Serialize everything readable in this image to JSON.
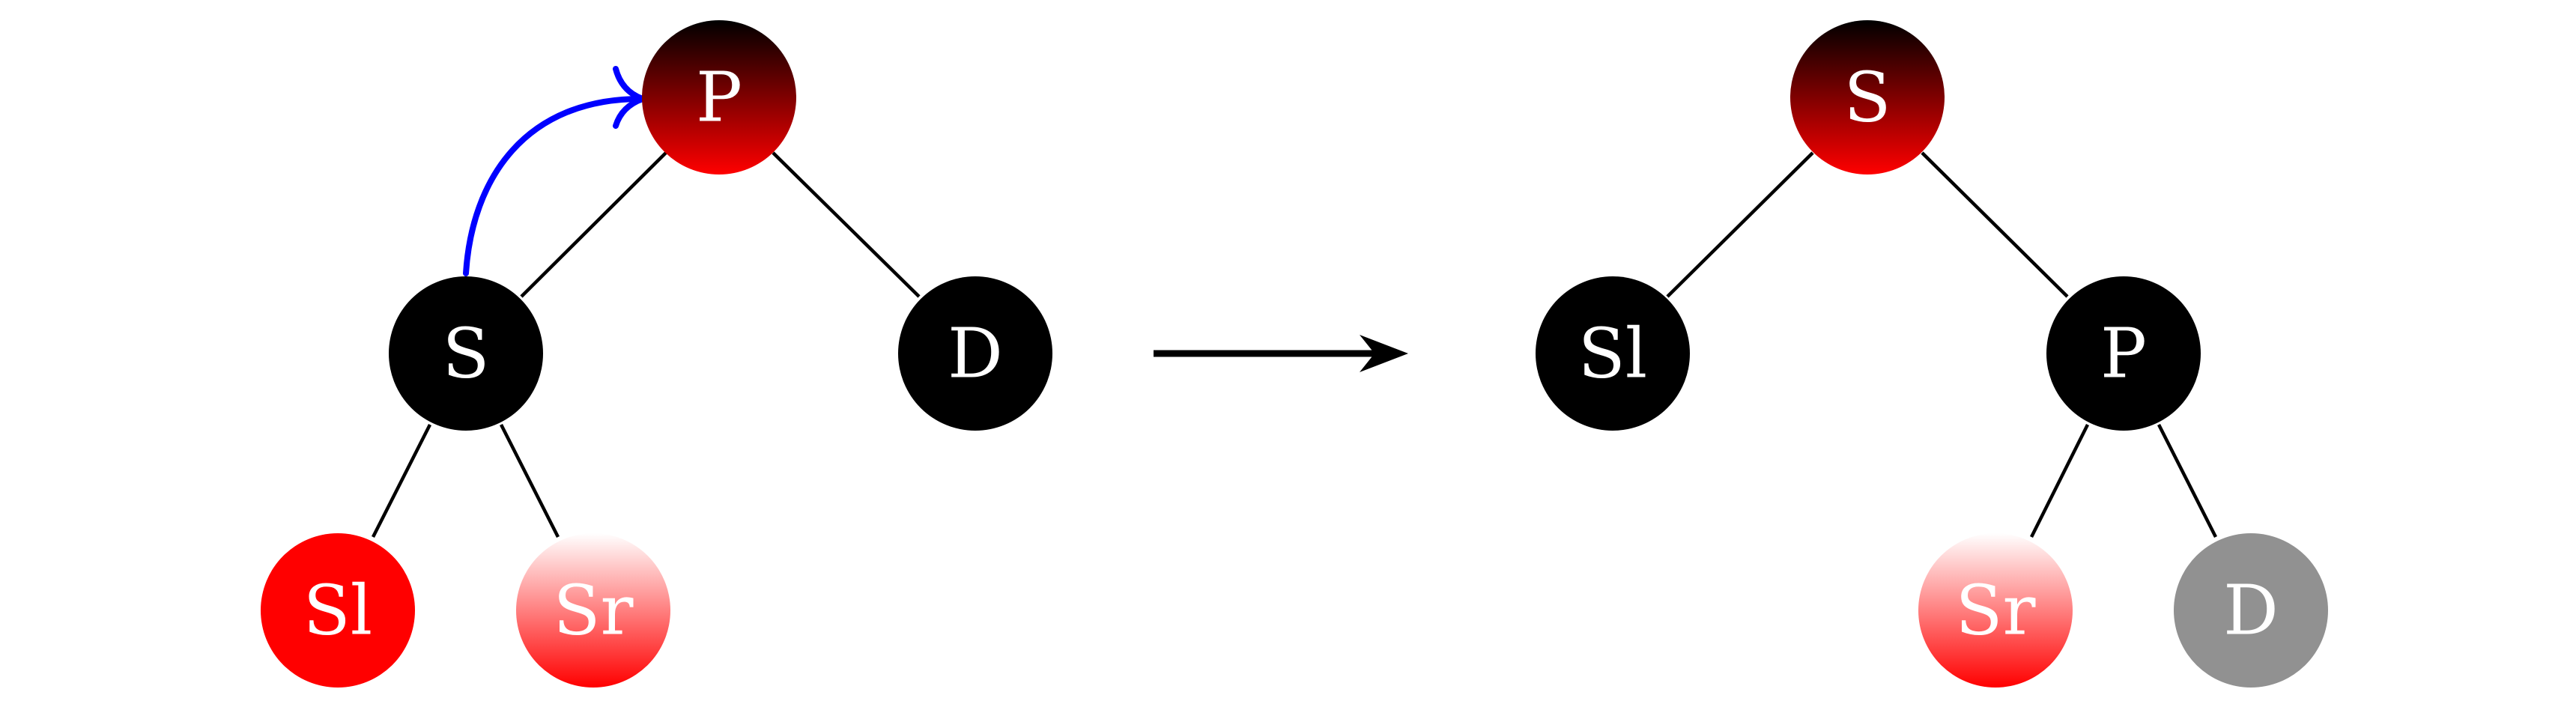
{
  "colors": {
    "black": "#000000",
    "red": "#ff0000",
    "gray": "#919191",
    "rotate_arrow": "#0000ff",
    "edge": "#000000"
  },
  "before_tree": {
    "nodes": {
      "p": {
        "label": "P",
        "fill": "black-to-red-gradient"
      },
      "s": {
        "label": "S",
        "fill": "black"
      },
      "d": {
        "label": "D",
        "fill": "black"
      },
      "sl": {
        "label": "Sl",
        "fill": "red"
      },
      "sr": {
        "label": "Sr",
        "fill": "white-to-red-gradient"
      }
    },
    "edges": [
      [
        "p",
        "s"
      ],
      [
        "p",
        "d"
      ],
      [
        "s",
        "sl"
      ],
      [
        "s",
        "sr"
      ]
    ],
    "rotation_arrow": {
      "from": "s",
      "to": "p",
      "icon": "curved-arrow-icon",
      "color": "blue"
    }
  },
  "transform_arrow": {
    "icon": "right-arrow-icon"
  },
  "after_tree": {
    "nodes": {
      "s": {
        "label": "S",
        "fill": "black-to-red-gradient"
      },
      "sl": {
        "label": "Sl",
        "fill": "black"
      },
      "p": {
        "label": "P",
        "fill": "black"
      },
      "sr": {
        "label": "Sr",
        "fill": "white-to-red-gradient"
      },
      "d": {
        "label": "D",
        "fill": "gray"
      }
    },
    "edges": [
      [
        "s",
        "sl"
      ],
      [
        "s",
        "p"
      ],
      [
        "p",
        "sr"
      ],
      [
        "p",
        "d"
      ]
    ]
  }
}
